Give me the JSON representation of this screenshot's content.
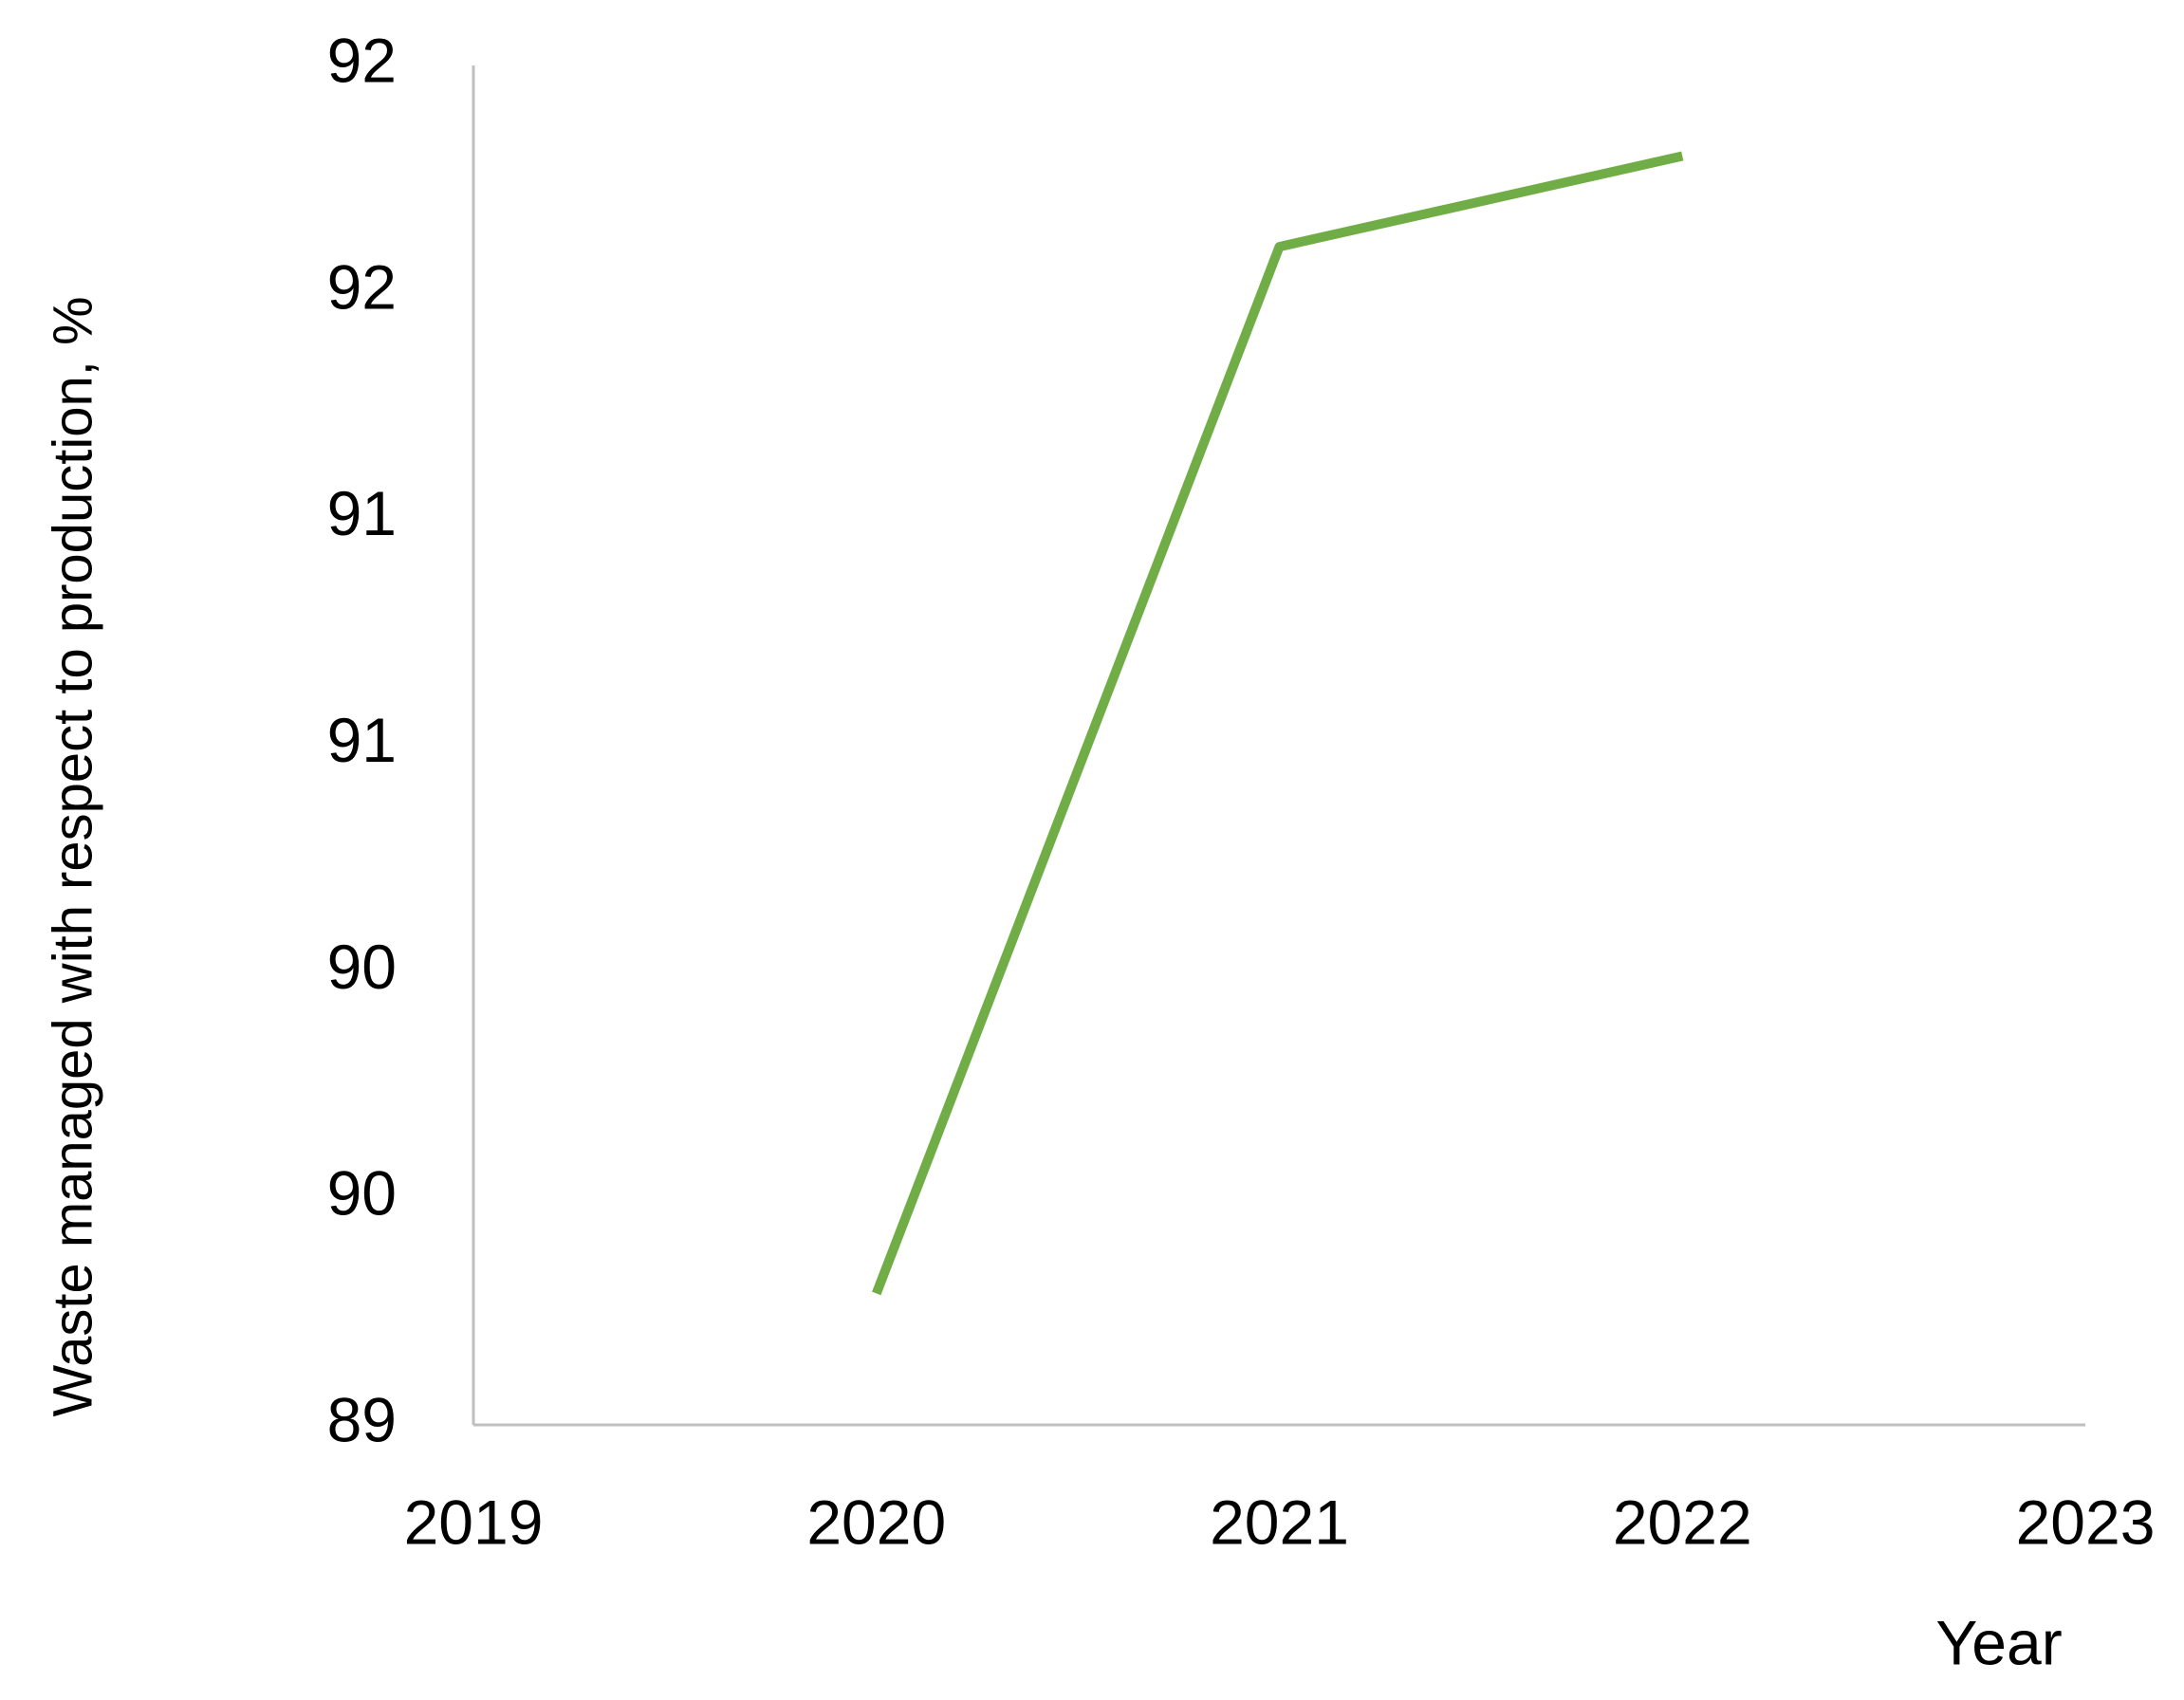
{
  "chart_data": {
    "type": "line",
    "x_label": "Year",
    "y_label": "Waste managed with respect to production, %",
    "x": [
      2020,
      2021,
      2022
    ],
    "series": [
      {
        "name": "Waste managed",
        "color": "#70ad47",
        "values": [
          89.29,
          91.6,
          91.8
        ]
      }
    ],
    "xlim": [
      2019,
      2023
    ],
    "xticks": [
      2019,
      2020,
      2021,
      2022,
      2023
    ],
    "ylim": [
      89,
      92
    ],
    "yticks": [
      89,
      {
        "value": 89.5,
        "label": "90"
      },
      90,
      {
        "value": 90.5,
        "label": "91"
      },
      91,
      {
        "value": 91.5,
        "label": "92"
      },
      92
    ],
    "grid": false
  }
}
